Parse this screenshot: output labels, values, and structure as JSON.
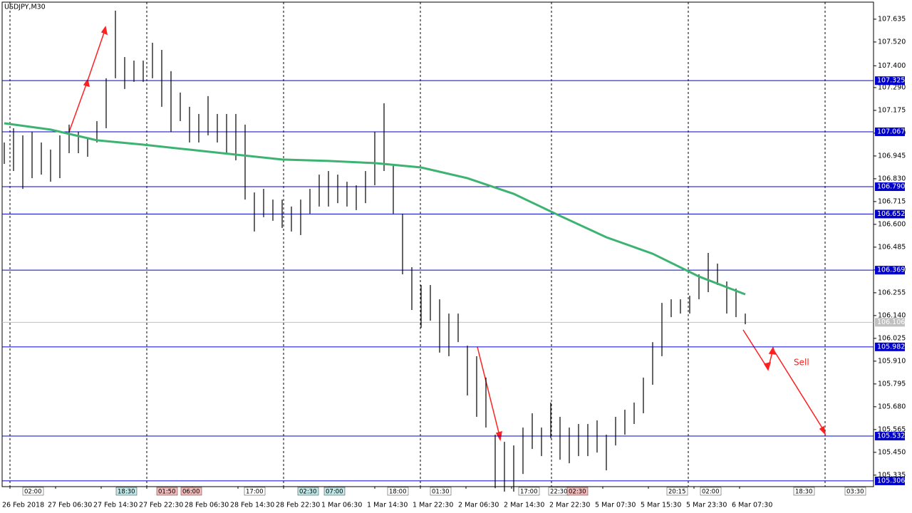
{
  "chart_data": {
    "type": "ohlc",
    "title": "USDJPY,M30",
    "annotation": "Sell",
    "ylim": [
      105.277,
      107.721
    ],
    "yticks": [
      107.635,
      {
        "value": 107.52,
        "label": "107.520"
      },
      {
        "value": 107.4,
        "label": "107.400"
      },
      {
        "value": 107.29,
        "label": "107.290"
      },
      107.175,
      {
        "value": 107.06,
        "label": "107.060"
      },
      106.945,
      {
        "value": 106.83,
        "label": "106.830"
      },
      106.715,
      {
        "value": 106.6,
        "label": "106.600"
      },
      106.485,
      {
        "value": 106.37,
        "label": "106.370"
      },
      106.255,
      {
        "value": 106.14,
        "label": "106.140"
      },
      106.025,
      {
        "value": 105.91,
        "label": "105.910"
      },
      105.795,
      {
        "value": 105.68,
        "label": "105.680"
      },
      105.565,
      {
        "value": 105.45,
        "label": "105.450"
      },
      105.335
    ],
    "x_labels": [
      "26 Feb 2018",
      "27 Feb 06:30",
      "27 Feb 14:30",
      "27 Feb 22:30",
      "28 Feb 06:30",
      "28 Feb 14:30",
      "28 Feb 22:30",
      "1 Mar 06:30",
      "1 Mar 14:30",
      "1 Mar 22:30",
      "2 Mar 06:30",
      "2 Mar 14:30",
      "2 Mar 22:30",
      "5 Mar 07:30",
      "5 Mar 15:30",
      "5 Mar 23:30",
      "6 Mar 07:30"
    ],
    "time_markers": [
      {
        "text": "02:00",
        "color": "#ffffff"
      },
      {
        "text": "18:30",
        "color": "#bfe8e8"
      },
      {
        "text": "01:50",
        "color": "#f4b8b8"
      },
      {
        "text": "06:00",
        "color": "#f4b8b8"
      },
      {
        "text": "17:00",
        "color": "#ffffff"
      },
      {
        "text": "02:30",
        "color": "#bfe8e8"
      },
      {
        "text": "07:00",
        "color": "#bfe8e8"
      },
      {
        "text": "18:00",
        "color": "#ffffff"
      },
      {
        "text": "01:30",
        "color": "#ffffff"
      },
      {
        "text": "17:00",
        "color": "#ffffff"
      },
      {
        "text": "22:30",
        "color": "#ffffff"
      },
      {
        "text": "02:30",
        "color": "#f4b8b8"
      },
      {
        "text": "20:15",
        "color": "#ffffff"
      },
      {
        "text": "02:00",
        "color": "#ffffff"
      },
      {
        "text": "18:30",
        "color": "#ffffff"
      },
      {
        "text": "03:30",
        "color": "#ffffff"
      }
    ],
    "bar_color": "#000000",
    "high": [
      107.013,
      107.085,
      107.049,
      107.067,
      107.013,
      106.977,
      107.049,
      107.103,
      107.067,
      107.031,
      107.121,
      107.337,
      107.678,
      107.444,
      107.426,
      107.426,
      107.516,
      107.48,
      107.373,
      107.265,
      107.193,
      107.157,
      107.247,
      107.157,
      107.157,
      107.157,
      107.103,
      106.761,
      106.779,
      106.725,
      106.725,
      106.69,
      106.725,
      106.779,
      106.851,
      106.869,
      106.851,
      106.815,
      106.797,
      106.869,
      107.067,
      107.211,
      106.905,
      106.654,
      106.384,
      106.294,
      106.294,
      106.222,
      106.15,
      106.15,
      105.988,
      105.935,
      105.827,
      105.539,
      105.503,
      105.485,
      105.575,
      105.647,
      105.575,
      105.701,
      105.629,
      105.575,
      105.593,
      105.593,
      105.611,
      105.539,
      105.629,
      105.665,
      105.701,
      105.827,
      106.006,
      106.204,
      106.222,
      106.222,
      106.24,
      106.348,
      106.456,
      106.402,
      106.312,
      106.276,
      106.15
    ],
    "low": [
      106.905,
      106.869,
      106.779,
      106.833,
      106.851,
      106.815,
      106.833,
      106.959,
      106.959,
      106.941,
      107.013,
      107.085,
      107.337,
      107.283,
      107.319,
      107.319,
      107.337,
      107.193,
      107.067,
      107.121,
      107.013,
      107.013,
      107.049,
      107.013,
      106.959,
      106.923,
      106.725,
      106.564,
      106.636,
      106.618,
      106.582,
      106.564,
      106.546,
      106.654,
      106.69,
      106.69,
      106.707,
      106.69,
      106.672,
      106.707,
      106.797,
      106.869,
      106.654,
      106.348,
      106.168,
      106.078,
      106.114,
      105.953,
      105.935,
      106.006,
      105.737,
      105.629,
      105.575,
      105.269,
      105.252,
      105.252,
      105.341,
      105.467,
      105.431,
      105.521,
      105.413,
      105.395,
      105.431,
      105.431,
      105.449,
      105.359,
      105.485,
      105.539,
      105.593,
      105.647,
      105.791,
      105.935,
      106.132,
      106.15,
      106.15,
      106.222,
      106.258,
      106.294,
      106.15,
      106.132,
      106.096
    ],
    "moving_average": {
      "color": "#3cb371",
      "bar_index": [
        0,
        5,
        10,
        15,
        20,
        25,
        30,
        35,
        40,
        45,
        50,
        55,
        60,
        65,
        70,
        75,
        80
      ],
      "values": [
        107.11,
        107.078,
        107.024,
        107.002,
        106.977,
        106.952,
        106.927,
        106.92,
        106.909,
        106.887,
        106.833,
        106.754,
        106.643,
        106.535,
        106.452,
        106.337,
        106.247
      ]
    },
    "levels": [
      107.325,
      107.067,
      {
        "value": 106.79,
        "label": "106.790"
      },
      106.652,
      106.369,
      105.982,
      105.532,
      105.306
    ],
    "level_color": "#0000cd",
    "current_price": 106.106,
    "current_color": "#c0c0c0"
  }
}
